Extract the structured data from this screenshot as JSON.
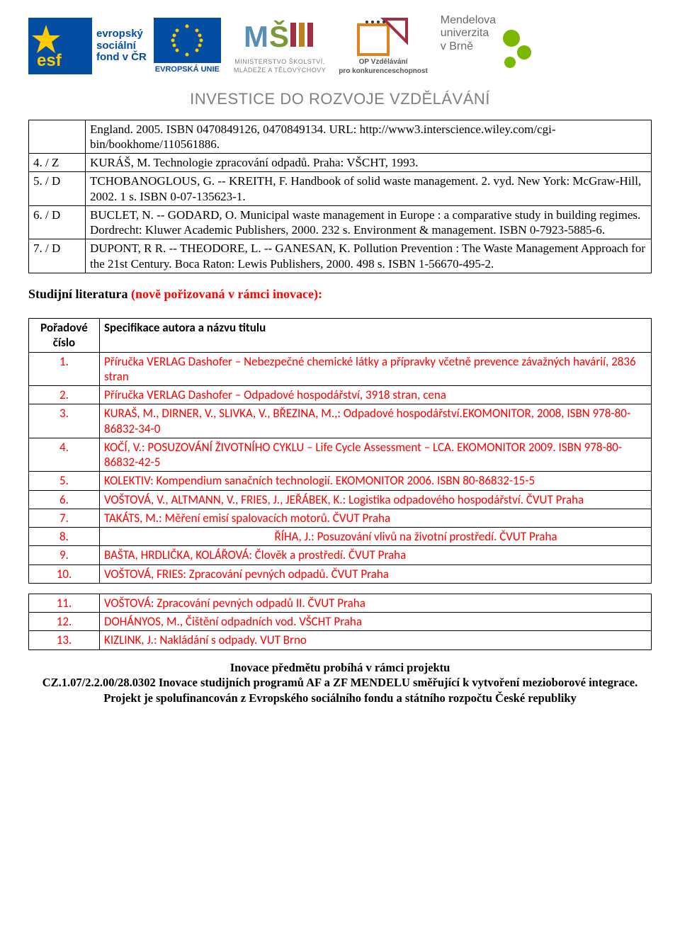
{
  "logos": {
    "esf_text1": "evropský",
    "esf_text2": "sociální",
    "esf_text3": "fond v ČR",
    "eu_text": "EVROPSKÁ UNIE",
    "msmt_line1": "MINISTERSTVO ŠKOLSTVÍ,",
    "msmt_line2": "MLÁDEŽE A TĚLOVÝCHOVY",
    "op_line1": "OP Vzdělávání",
    "op_line2": "pro konkurenceschopnost",
    "mendelu_line1": "Mendelova",
    "mendelu_line2": "univerzita",
    "mendelu_line3": "v Brně"
  },
  "investice": "INVESTICE DO ROZVOJE VZDĚLÁVÁNÍ",
  "refs": [
    {
      "num": "",
      "text": "England. 2005. ISBN 0470849126, 0470849134. URL: http://www3.interscience.wiley.com/cgi-bin/bookhome/110561886."
    },
    {
      "num": "4.   / Z",
      "text": "KURÁŠ, M. Technologie zpracování odpadů. Praha: VŠCHT, 1993."
    },
    {
      "num": "5.   / D",
      "text": "TCHOBANOGLOUS, G. -- KREITH, F. Handbook of solid waste management. 2. vyd. New York: McGraw-Hill, 2002. 1 s. ISBN 0-07-135623-1."
    },
    {
      "num": "6.   / D",
      "text": "BUCLET, N. -- GODARD, O. Municipal waste management in Europe : a comparative study in building regimes. Dordrecht: Kluwer Academic Publishers, 2000. 232 s. Environment & management. ISBN 0-7923-5885-6."
    },
    {
      "num": "7.   / D",
      "text": "DUPONT, R R. -- THEODORE, L. -- GANESAN, K. Pollution Prevention : The Waste Management Approach for the 21st Century. Boca Raton: Lewis Publishers, 2000. 498 s. ISBN 1-56670-495-2."
    }
  ],
  "section_heading_black": "Studijní literatura ",
  "section_heading_red": "(nově pořizovaná v rámci inovace):",
  "lit_header_num": "Pořadové číslo",
  "lit_header_spec": "Specifikace autora a názvu titulu",
  "lit1": [
    {
      "num": "1.",
      "text": "Příručka VERLAG Dashofer – Nebezpečné chemické látky a přípravky včetně prevence závažných havárií, 2836 stran"
    },
    {
      "num": "2.",
      "text": "Příručka VERLAG Dashofer – Odpadové hospodářství, 3918 stran, cena"
    },
    {
      "num": "3.",
      "text": "KURAŠ, M., DIRNER, V., SLIVKA, V., BŘEZINA, M.,: Odpadové hospodářství.EKOMONITOR, 2008, ISBN 978-80-86832-34-0"
    },
    {
      "num": "4.",
      "text": "KOČÍ, V.: POSUZOVÁNÍ ŽIVOTNÍHO CYKLU – Life Cycle Assessment – LCA. EKOMONITOR 2009. ISBN 978-80-86832-42-5"
    },
    {
      "num": "5.",
      "text": "KOLEKTIV: Kompendium sanačních technologií. EKOMONITOR 2006. ISBN 80-86832-15-5"
    },
    {
      "num": "6.",
      "text": "VOŠTOVÁ, V., ALTMANN, V., FRIES, J., JEŘÁBEK, K.: Logistika odpadového hospodářství. ČVUT Praha"
    },
    {
      "num": "7.",
      "text": "TAKÁTS, M.: Měření emisí spalovacích motorů. ČVUT Praha"
    },
    {
      "num": "8.",
      "text": "ŘÍHA, J.: Posuzování vlivů na životní prostředí. ČVUT Praha",
      "center": true
    },
    {
      "num": "9.",
      "text": "BAŠTA, HRDLIČKA, KOLÁŘOVÁ: Člověk a prostředí. ČVUT Praha"
    },
    {
      "num": "10.",
      "text": "VOŠTOVÁ, FRIES: Zpracování pevných odpadů. ČVUT Praha"
    }
  ],
  "lit2": [
    {
      "num": "11.",
      "text": "VOŠTOVÁ: Zpracování pevných odpadů II. ČVUT Praha"
    },
    {
      "num": "12.",
      "text": "DOHÁNYOS, M., Čištění odpadních vod. VŠCHT Praha"
    },
    {
      "num": "13.",
      "text": "KIZLINK, J.: Nakládání s odpady. VUT Brno"
    }
  ],
  "footer_line1": "Inovace předmětu probíhá v rámci projektu",
  "footer_line2": "CZ.1.07/2.2.00/28.0302 Inovace studijních programů AF a ZF MENDELU směřující k vytvoření mezioborové integrace.",
  "footer_line3": "Projekt je spolufinancován z Evropského sociálního fondu a státního rozpočtu České republiky",
  "colors": {
    "red": "#ff0000",
    "gray": "#808080",
    "black": "#000000",
    "eu_blue": "#034ea2",
    "eu_yellow": "#ffcc00",
    "mendelu_green": "#7ab800"
  }
}
